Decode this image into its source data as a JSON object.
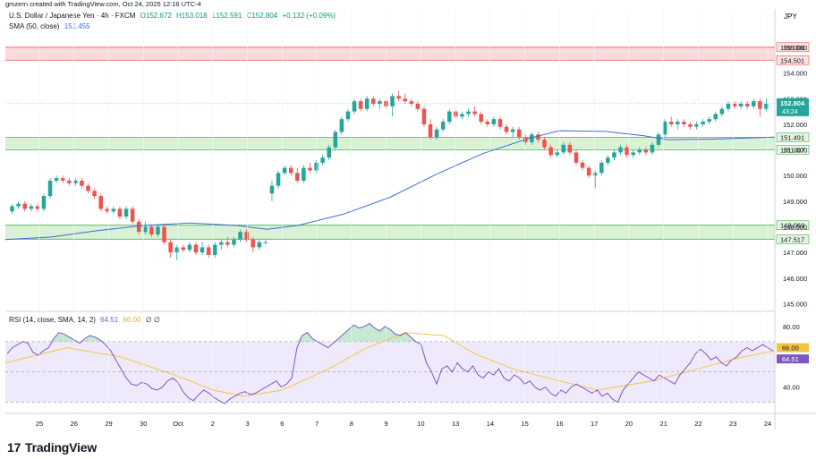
{
  "header": {
    "credit": "gmzern created with TradingView.com, Oct 24, 2025 12:16 UTC-4",
    "symbol": "U.S. Dollar / Japanese Yen · 4h · FXCM",
    "ohlc": [
      "O152.672",
      "H153.018",
      "L152.591",
      "C152.804",
      "+0.132 (+0.09%)"
    ],
    "sma_label": "SMA (50, close)",
    "sma_value": "151.455",
    "rsi_label": "RSI (14, close, SMA, 14, 2)",
    "rsi_value": "64.51",
    "rsi_sma_value": "66.00",
    "rsi_extra": "∅ ∅",
    "currency": "JPY",
    "countdown": "43:24"
  },
  "brand": {
    "name": "TradingView",
    "mark": "17"
  },
  "colors": {
    "up": "#26a69a",
    "down": "#ef5350",
    "sma": "#3c6bd6",
    "rsi": "#7e57c2",
    "rsi_sma": "#f5c542",
    "zone_red": "#fbdada",
    "zone_green": "#d9f2d6"
  },
  "chart_data": {
    "type": "candlestick",
    "price_axis": {
      "min": 144.7,
      "max": 156.5,
      "ticks": [
        145,
        146,
        147,
        148,
        149,
        150,
        151,
        152,
        153,
        154,
        155
      ]
    },
    "tick_labels": [
      "145.000",
      "146.000",
      "147.000",
      "148.000",
      "149.000",
      "150.000",
      "151.000",
      "152.000",
      "153.000",
      "154.000",
      "155.000"
    ],
    "x_labels": [
      "25",
      "26",
      "29",
      "30",
      "Oct",
      "2",
      "3",
      "6",
      "7",
      "8",
      "9",
      "10",
      "13",
      "14",
      "15",
      "16",
      "17",
      "20",
      "21",
      "22",
      "23",
      "24"
    ],
    "zones": [
      {
        "top": 155.006,
        "bottom": 154.501,
        "color": "red",
        "labels": [
          "155.006",
          "154.501"
        ]
      },
      {
        "top": 151.491,
        "bottom": 151.007,
        "color": "green",
        "labels": [
          "151.491",
          "151.007"
        ]
      },
      {
        "top": 148.063,
        "bottom": 147.517,
        "color": "green",
        "labels": [
          "148.063",
          "147.517"
        ]
      }
    ],
    "last_price": {
      "value": 152.804,
      "label": "152.804"
    },
    "candles": [
      [
        148.6,
        148.9,
        148.5,
        148.8
      ],
      [
        148.8,
        149.0,
        148.7,
        148.9
      ],
      [
        148.9,
        149.0,
        148.6,
        148.7
      ],
      [
        148.7,
        148.9,
        148.6,
        148.8
      ],
      [
        148.8,
        148.9,
        148.6,
        148.7
      ],
      [
        148.7,
        149.3,
        148.6,
        149.2
      ],
      [
        149.2,
        149.9,
        149.1,
        149.8
      ],
      [
        149.8,
        150.0,
        149.7,
        149.9
      ],
      [
        149.9,
        150.0,
        149.7,
        149.8
      ],
      [
        149.8,
        149.9,
        149.6,
        149.7
      ],
      [
        149.7,
        149.9,
        149.6,
        149.8
      ],
      [
        149.8,
        149.9,
        149.5,
        149.6
      ],
      [
        149.6,
        149.7,
        149.3,
        149.4
      ],
      [
        149.4,
        149.5,
        149.1,
        149.2
      ],
      [
        149.2,
        149.3,
        148.6,
        148.7
      ],
      [
        148.7,
        148.8,
        148.5,
        148.6
      ],
      [
        148.6,
        148.8,
        148.5,
        148.7
      ],
      [
        148.7,
        148.8,
        148.3,
        148.4
      ],
      [
        148.4,
        148.8,
        148.3,
        148.7
      ],
      [
        148.7,
        148.8,
        148.1,
        148.2
      ],
      [
        148.2,
        148.3,
        147.7,
        147.8
      ],
      [
        147.8,
        148.2,
        147.7,
        148.0
      ],
      [
        148.0,
        148.1,
        147.6,
        147.7
      ],
      [
        147.7,
        148.1,
        147.6,
        148.0
      ],
      [
        148.0,
        148.1,
        147.3,
        147.4
      ],
      [
        147.4,
        147.5,
        146.8,
        147.0
      ],
      [
        147.0,
        147.3,
        146.7,
        147.2
      ],
      [
        147.2,
        147.3,
        147.0,
        147.1
      ],
      [
        147.1,
        147.4,
        147.0,
        147.3
      ],
      [
        147.3,
        147.4,
        146.9,
        147.0
      ],
      [
        147.0,
        147.4,
        146.9,
        147.2
      ],
      [
        147.2,
        147.3,
        146.8,
        146.9
      ],
      [
        146.9,
        147.4,
        146.8,
        147.3
      ],
      [
        147.3,
        147.5,
        147.1,
        147.4
      ],
      [
        147.4,
        147.6,
        147.2,
        147.3
      ],
      [
        147.3,
        147.6,
        147.2,
        147.5
      ],
      [
        147.5,
        147.9,
        147.4,
        147.8
      ],
      [
        147.8,
        147.9,
        147.4,
        147.5
      ],
      [
        147.5,
        147.6,
        147.0,
        147.2
      ],
      [
        147.2,
        147.5,
        147.1,
        147.4
      ],
      [
        147.4,
        147.5,
        147.3,
        147.4
      ],
      [
        149.3,
        149.8,
        149.0,
        149.6
      ],
      [
        149.6,
        150.2,
        149.5,
        150.1
      ],
      [
        150.1,
        150.4,
        150.0,
        150.3
      ],
      [
        150.3,
        150.4,
        150.0,
        150.1
      ],
      [
        150.1,
        150.3,
        149.7,
        149.8
      ],
      [
        149.8,
        150.4,
        149.7,
        150.3
      ],
      [
        150.3,
        150.5,
        150.1,
        150.2
      ],
      [
        150.2,
        150.6,
        150.1,
        150.5
      ],
      [
        150.5,
        150.8,
        150.4,
        150.7
      ],
      [
        150.7,
        151.2,
        150.6,
        151.1
      ],
      [
        151.1,
        151.8,
        151.0,
        151.7
      ],
      [
        151.7,
        152.3,
        151.6,
        152.2
      ],
      [
        152.2,
        152.6,
        152.1,
        152.5
      ],
      [
        152.5,
        153.0,
        152.4,
        152.9
      ],
      [
        152.9,
        153.0,
        152.5,
        152.6
      ],
      [
        152.6,
        153.1,
        152.5,
        153.0
      ],
      [
        153.0,
        153.1,
        152.7,
        152.8
      ],
      [
        152.8,
        153.0,
        152.6,
        152.9
      ],
      [
        152.9,
        153.0,
        152.6,
        152.7
      ],
      [
        152.7,
        153.2,
        152.3,
        153.1
      ],
      [
        153.1,
        153.3,
        152.9,
        153.0
      ],
      [
        153.0,
        153.2,
        152.8,
        152.9
      ],
      [
        152.9,
        153.0,
        152.7,
        152.8
      ],
      [
        152.8,
        152.9,
        152.5,
        152.6
      ],
      [
        152.6,
        152.7,
        151.9,
        152.0
      ],
      [
        152.0,
        152.2,
        151.4,
        151.5
      ],
      [
        151.5,
        151.9,
        151.4,
        151.8
      ],
      [
        151.8,
        152.2,
        151.7,
        152.1
      ],
      [
        152.1,
        152.6,
        152.0,
        152.5
      ],
      [
        152.5,
        152.6,
        152.2,
        152.3
      ],
      [
        152.3,
        152.5,
        152.2,
        152.4
      ],
      [
        152.4,
        152.6,
        152.3,
        152.5
      ],
      [
        152.5,
        152.7,
        152.3,
        152.4
      ],
      [
        152.4,
        152.5,
        152.0,
        152.1
      ],
      [
        152.1,
        152.2,
        151.9,
        152.0
      ],
      [
        152.0,
        152.3,
        151.9,
        152.2
      ],
      [
        152.2,
        152.3,
        151.8,
        151.9
      ],
      [
        151.9,
        152.0,
        151.6,
        151.7
      ],
      [
        151.7,
        151.9,
        151.5,
        151.8
      ],
      [
        151.8,
        151.9,
        151.4,
        151.5
      ],
      [
        151.5,
        151.6,
        151.2,
        151.3
      ],
      [
        151.3,
        151.7,
        151.2,
        151.6
      ],
      [
        151.6,
        151.7,
        151.3,
        151.4
      ],
      [
        151.4,
        151.5,
        151.0,
        151.1
      ],
      [
        151.1,
        151.2,
        150.7,
        150.8
      ],
      [
        150.8,
        151.0,
        150.7,
        150.9
      ],
      [
        150.9,
        151.3,
        150.8,
        151.2
      ],
      [
        151.2,
        151.3,
        150.8,
        150.9
      ],
      [
        150.9,
        151.0,
        150.4,
        150.5
      ],
      [
        150.5,
        150.6,
        150.2,
        150.3
      ],
      [
        150.3,
        150.4,
        149.9,
        150.0
      ],
      [
        150.0,
        150.2,
        149.5,
        150.1
      ],
      [
        150.1,
        150.6,
        150.0,
        150.5
      ],
      [
        150.5,
        150.8,
        150.4,
        150.7
      ],
      [
        150.7,
        151.0,
        150.6,
        150.9
      ],
      [
        150.9,
        151.2,
        150.8,
        151.1
      ],
      [
        151.1,
        151.2,
        150.7,
        150.8
      ],
      [
        150.8,
        151.0,
        150.7,
        150.9
      ],
      [
        150.9,
        151.1,
        150.8,
        151.0
      ],
      [
        151.0,
        151.1,
        150.8,
        150.9
      ],
      [
        150.9,
        151.3,
        150.8,
        151.2
      ],
      [
        151.2,
        151.7,
        151.1,
        151.6
      ],
      [
        151.6,
        152.2,
        151.5,
        152.1
      ],
      [
        152.1,
        152.3,
        151.9,
        152.0
      ],
      [
        152.0,
        152.2,
        151.8,
        152.1
      ],
      [
        152.1,
        152.2,
        151.9,
        152.0
      ],
      [
        152.0,
        152.1,
        151.8,
        151.9
      ],
      [
        151.9,
        152.1,
        151.8,
        152.0
      ],
      [
        152.0,
        152.2,
        151.9,
        152.1
      ],
      [
        152.1,
        152.3,
        152.0,
        152.2
      ],
      [
        152.2,
        152.5,
        152.1,
        152.4
      ],
      [
        152.4,
        152.7,
        152.3,
        152.6
      ],
      [
        152.6,
        152.9,
        152.5,
        152.8
      ],
      [
        152.8,
        152.9,
        152.6,
        152.7
      ],
      [
        152.7,
        152.9,
        152.6,
        152.8
      ],
      [
        152.8,
        152.9,
        152.6,
        152.7
      ],
      [
        152.7,
        153.0,
        152.6,
        152.9
      ],
      [
        152.9,
        153.0,
        152.3,
        152.6
      ],
      [
        152.6,
        153.0,
        152.5,
        152.8
      ]
    ],
    "sma": [
      [
        0,
        147.5
      ],
      [
        0.06,
        147.6
      ],
      [
        0.12,
        147.85
      ],
      [
        0.18,
        148.05
      ],
      [
        0.24,
        148.15
      ],
      [
        0.3,
        148.05
      ],
      [
        0.34,
        147.9
      ],
      [
        0.38,
        148.05
      ],
      [
        0.44,
        148.5
      ],
      [
        0.5,
        149.15
      ],
      [
        0.56,
        150.05
      ],
      [
        0.62,
        150.85
      ],
      [
        0.68,
        151.45
      ],
      [
        0.72,
        151.75
      ],
      [
        0.78,
        151.72
      ],
      [
        0.83,
        151.55
      ],
      [
        0.86,
        151.4
      ],
      [
        0.92,
        151.42
      ],
      [
        1.0,
        151.5
      ]
    ],
    "rsi": {
      "axis": {
        "min": 25,
        "max": 90,
        "ticks": [
          40,
          60,
          80
        ],
        "tick_labels": [
          "40.00",
          "60.00",
          "80.00"
        ]
      },
      "upper": 70,
      "lower": 30,
      "mid": 50,
      "values": [
        62,
        66,
        68,
        70,
        69,
        63,
        61,
        64,
        66,
        72,
        76,
        75,
        73,
        71,
        69,
        72,
        74,
        73,
        71,
        68,
        64,
        58,
        52,
        46,
        42,
        41,
        43,
        42,
        39,
        38,
        40,
        44,
        46,
        43,
        37,
        33,
        31,
        35,
        38,
        36,
        33,
        31,
        29,
        32,
        34,
        36,
        37,
        35,
        36,
        38,
        40,
        42,
        44,
        40,
        42,
        46,
        66,
        74,
        76,
        72,
        70,
        68,
        66,
        69,
        72,
        75,
        78,
        81,
        79,
        80,
        82,
        79,
        77,
        80,
        78,
        75,
        74,
        76,
        73,
        70,
        68,
        56,
        50,
        42,
        52,
        54,
        50,
        56,
        52,
        50,
        54,
        48,
        46,
        50,
        48,
        52,
        46,
        44,
        48,
        46,
        42,
        44,
        40,
        38,
        40,
        36,
        34,
        38,
        36,
        40,
        42,
        40,
        38,
        36,
        38,
        34,
        36,
        32,
        30,
        38,
        42,
        46,
        50,
        48,
        46,
        44,
        48,
        46,
        44,
        42,
        48,
        52,
        56,
        62,
        65,
        62,
        58,
        60,
        56,
        54,
        58,
        60,
        64,
        66,
        64,
        66,
        68,
        66,
        64
      ]
    },
    "rsi_sma": [
      [
        0,
        56
      ],
      [
        0.08,
        66
      ],
      [
        0.15,
        60
      ],
      [
        0.22,
        48
      ],
      [
        0.27,
        38
      ],
      [
        0.31,
        34
      ],
      [
        0.36,
        38
      ],
      [
        0.42,
        52
      ],
      [
        0.47,
        66
      ],
      [
        0.52,
        76
      ],
      [
        0.57,
        74
      ],
      [
        0.61,
        62
      ],
      [
        0.66,
        52
      ],
      [
        0.72,
        44
      ],
      [
        0.77,
        38
      ],
      [
        0.84,
        44
      ],
      [
        0.9,
        52
      ],
      [
        0.96,
        60
      ],
      [
        1.0,
        64
      ]
    ]
  }
}
